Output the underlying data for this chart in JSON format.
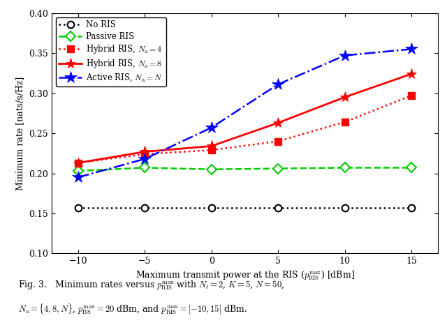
{
  "x": [
    -10,
    -5,
    0,
    5,
    10,
    15
  ],
  "no_ris": [
    0.157,
    0.157,
    0.157,
    0.157,
    0.157,
    0.157
  ],
  "passive_ris": [
    0.203,
    0.207,
    0.205,
    0.206,
    0.207,
    0.207
  ],
  "hybrid_na4": [
    0.213,
    0.224,
    0.229,
    0.24,
    0.264,
    0.297
  ],
  "hybrid_na8": [
    0.213,
    0.227,
    0.234,
    0.263,
    0.295,
    0.324
  ],
  "active_ris": [
    0.195,
    0.218,
    0.257,
    0.311,
    0.347,
    0.355
  ],
  "xlabel": "Maximum transmit power at the RIS ($p_{\\mathrm{RIS}}^{\\max}$) [dBm]",
  "ylabel": "Minimum rate [nats/s/Hz]",
  "ylim": [
    0.1,
    0.4
  ],
  "xlim": [
    -12,
    17
  ],
  "xticks": [
    -10,
    -5,
    0,
    5,
    10,
    15
  ],
  "yticks": [
    0.1,
    0.15,
    0.2,
    0.25,
    0.3,
    0.35,
    0.4
  ],
  "color_no_ris": "#000000",
  "color_passive": "#00cc00",
  "color_hybrid4": "#ff0000",
  "color_hybrid8": "#ff0000",
  "color_active": "#0000ff",
  "legend_labels": [
    "No RIS",
    "Passive RIS",
    "Hybrid RIS, $N_{\\mathrm{a}} = 4$",
    "Hybrid RIS, $N_{\\mathrm{a}} = 8$",
    "Active RIS, $N_{\\mathrm{a}} = N$"
  ],
  "caption_line1": "Fig. 3.   Minimum rates versus $p_{\\mathrm{RIS}}^{\\max}$ with $N_t = 2$, $K = 5$, $N = 50$,",
  "caption_line2": "$N_{\\mathrm{a}} = \\{4, 8, N\\}$, $p_{\\mathrm{BS}}^{\\max} = 20$ dBm, and $p_{\\mathrm{RIS}}^{\\max} = [-10, 15]$ dBm."
}
